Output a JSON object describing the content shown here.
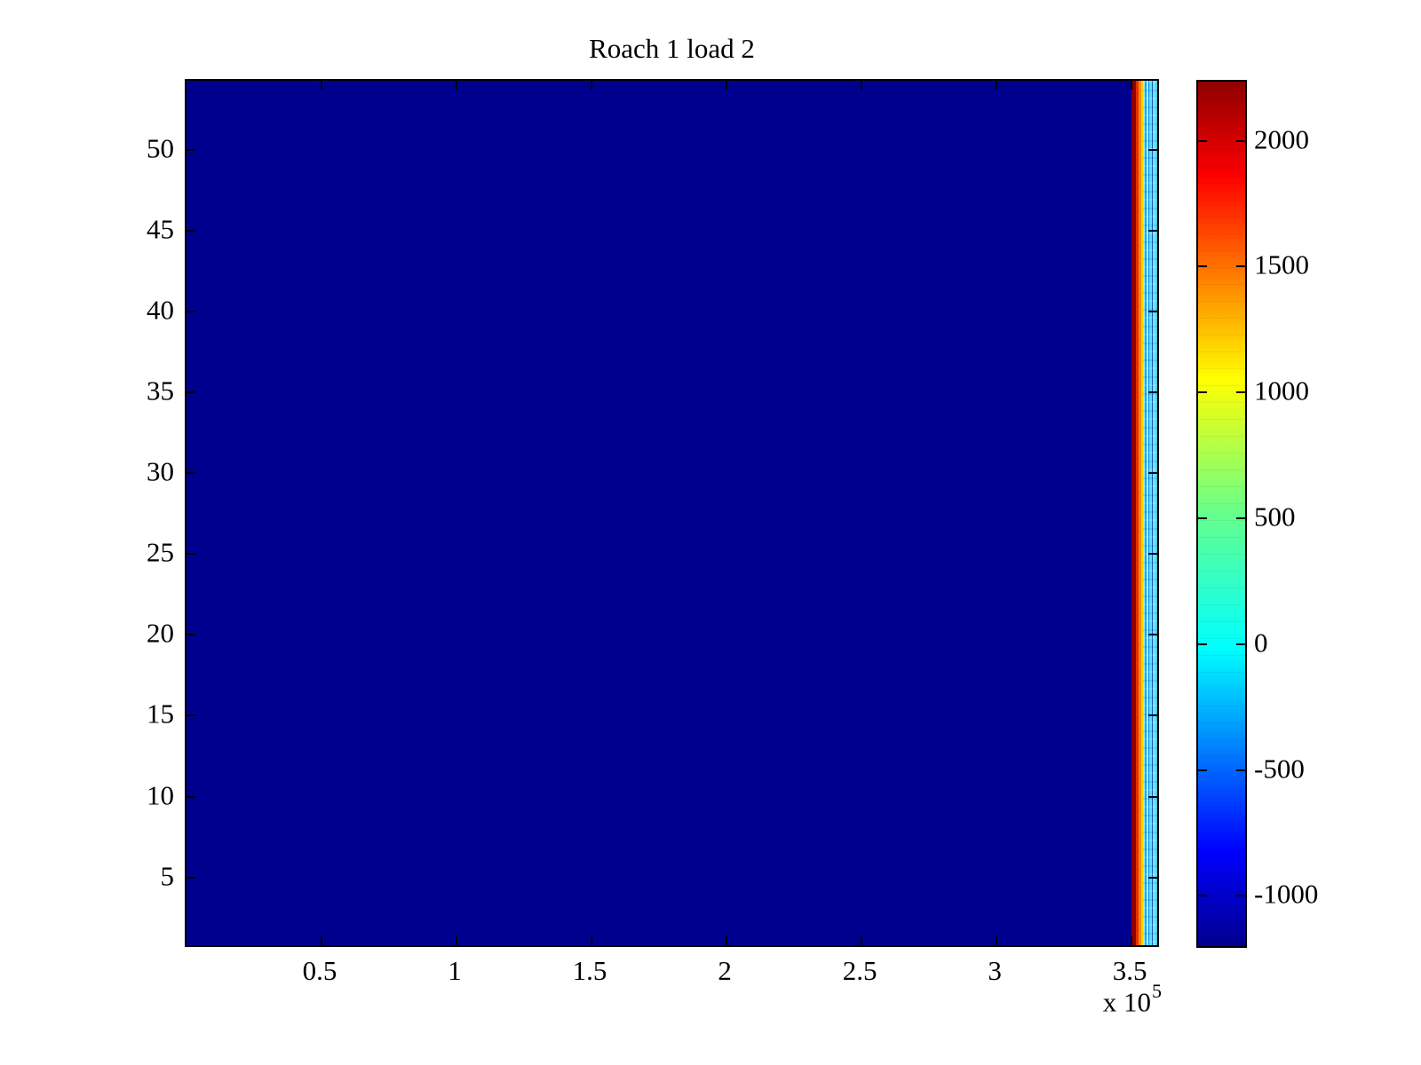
{
  "figure": {
    "background_color": "#ffffff"
  },
  "chart_data": {
    "type": "heatmap",
    "title": "Roach 1 load 2",
    "colormap": "jet",
    "legend_position": "colorbar-right",
    "grid": false,
    "xlim": [
      0,
      359500
    ],
    "ylim": [
      0.8,
      54.3
    ],
    "clim": [
      -1200,
      2235
    ],
    "x_ticks": [
      50000,
      100000,
      150000,
      200000,
      250000,
      300000,
      350000
    ],
    "x_tick_labels": [
      "0.5",
      "1",
      "1.5",
      "2",
      "2.5",
      "3",
      "3.5"
    ],
    "x_multiplier": {
      "prefix": "x 10",
      "exponent": "5"
    },
    "y_ticks": [
      5,
      10,
      15,
      20,
      25,
      30,
      35,
      40,
      45,
      50
    ],
    "y_tick_labels": [
      "5",
      "10",
      "15",
      "20",
      "25",
      "30",
      "35",
      "40",
      "45",
      "50"
    ],
    "colorbar_ticks": [
      2000,
      1500,
      1000,
      500,
      0,
      -500,
      -1000
    ],
    "colorbar_tick_labels": [
      "2000",
      "1500",
      "1000",
      "500",
      "0",
      "-500",
      "-1000"
    ],
    "background_value": -1200,
    "background_color": "#00008f",
    "regions": [
      {
        "x_range": [
          0,
          350000
        ],
        "y_range": [
          0.8,
          54.3
        ],
        "value": -1200,
        "color": "#00008f",
        "note": "uniform minimum (dark navy) field covering almost entire plot"
      },
      {
        "x_range": [
          350000,
          351650
        ],
        "y_range": [
          0.8,
          54.3
        ],
        "value": 2200,
        "color": "#8f0000",
        "note": "narrow maximum band (dark red)"
      },
      {
        "x_range": [
          351650,
          352650
        ],
        "y_range": [
          0.8,
          54.3
        ],
        "value": 1850,
        "color": "#e63000",
        "note": "red-orange transition band"
      },
      {
        "x_range": [
          352650,
          353450
        ],
        "y_range": [
          0.8,
          54.3
        ],
        "value": 1300,
        "color": "#ff8c00",
        "note": "orange transition band"
      },
      {
        "x_range": [
          353450,
          354100
        ],
        "y_range": [
          0.8,
          54.3
        ],
        "value": 900,
        "color": "#ffd400",
        "note": "thin yellow transition band"
      },
      {
        "x_range": [
          354100,
          359500
        ],
        "y_range": [
          0.8,
          54.3
        ],
        "value": 0,
        "value_range": [
          -450,
          450
        ],
        "color": "#35c8f2",
        "texture": "turbulent cyan/blue vertical striations",
        "note": "noisy near-zero region at right edge"
      }
    ],
    "jet_stops": [
      {
        "p": 0.0,
        "c": "#00008f"
      },
      {
        "p": 0.11,
        "c": "#0000ff"
      },
      {
        "p": 0.345,
        "c": "#00ffff"
      },
      {
        "p": 0.5,
        "c": "#66ff8c"
      },
      {
        "p": 0.655,
        "c": "#ffff00"
      },
      {
        "p": 0.89,
        "c": "#ff0000"
      },
      {
        "p": 1.0,
        "c": "#8f0000"
      }
    ]
  }
}
